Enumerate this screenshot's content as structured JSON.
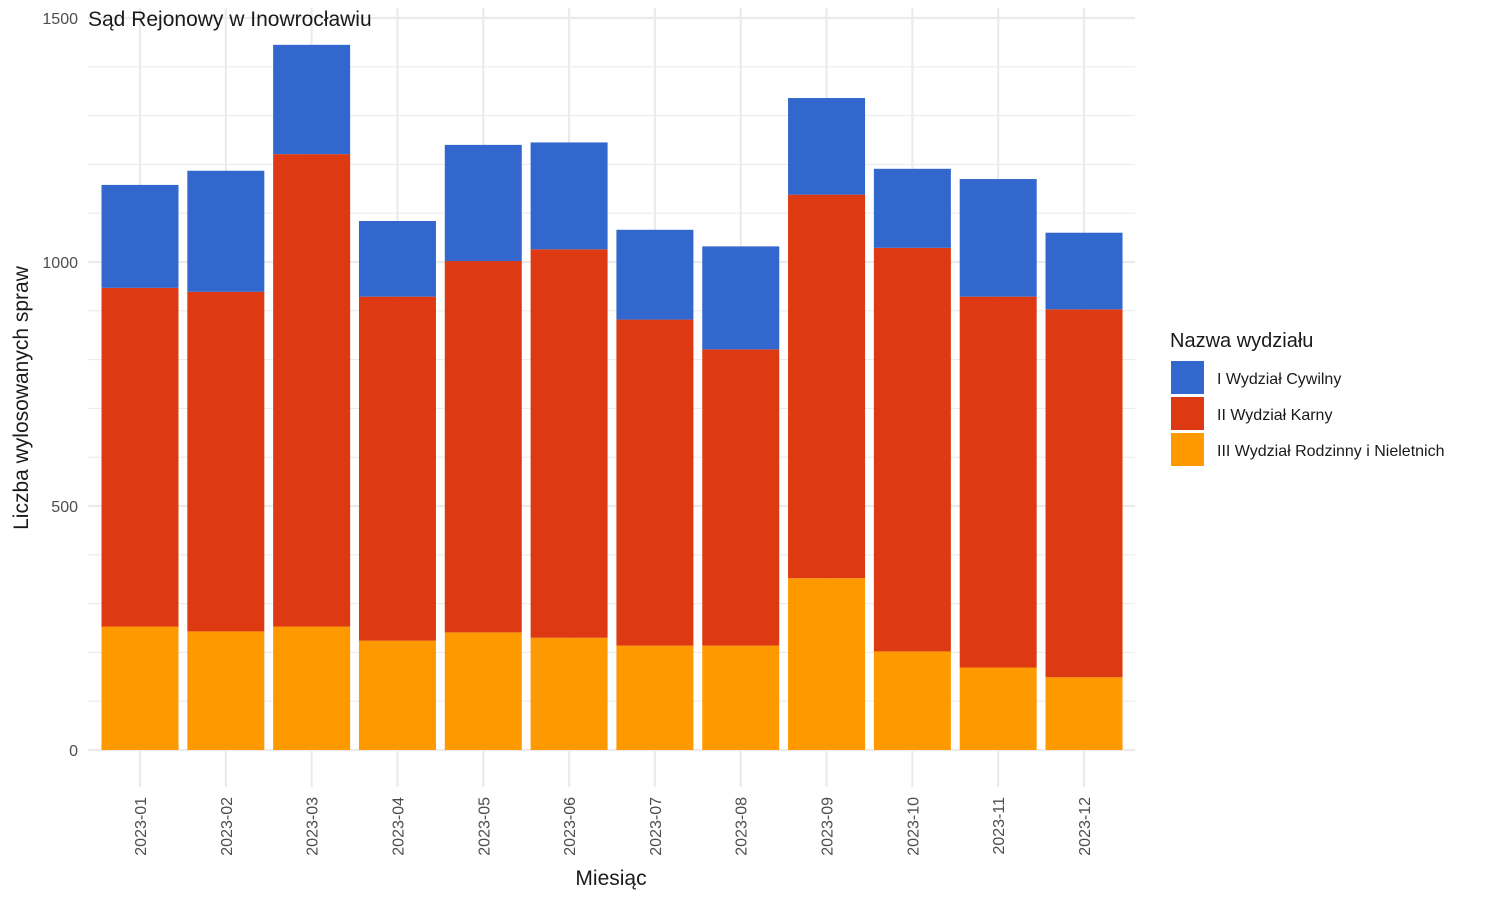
{
  "chart_data": {
    "type": "bar",
    "stacked": true,
    "title": "Sąd Rejonowy w Inowrocławiu",
    "xlabel": "Miesiąc",
    "ylabel": "Liczba wylosowanych spraw",
    "ylim": [
      0,
      1500
    ],
    "yticks": [
      0,
      500,
      1000,
      1500
    ],
    "grid": true,
    "legend_title": "Nazwa wydziału",
    "legend_position": "right",
    "categories": [
      "2023-01",
      "2023-02",
      "2023-03",
      "2023-04",
      "2023-05",
      "2023-06",
      "2023-07",
      "2023-08",
      "2023-09",
      "2023-10",
      "2023-11",
      "2023-12"
    ],
    "series": [
      {
        "name": "I Wydział Cywilny",
        "color": "#3268CE",
        "values": [
          211,
          248,
          224,
          155,
          238,
          219,
          184,
          211,
          198,
          162,
          241,
          157
        ]
      },
      {
        "name": "II Wydział Karny",
        "color": "#DD3A13",
        "values": [
          694,
          696,
          968,
          705,
          761,
          796,
          668,
          607,
          786,
          827,
          760,
          754
        ]
      },
      {
        "name": "III Wydział Rodzinny i Nieletnich",
        "color": "#FF9900",
        "values": [
          253,
          243,
          253,
          224,
          241,
          230,
          214,
          214,
          352,
          202,
          169,
          149
        ]
      }
    ]
  }
}
